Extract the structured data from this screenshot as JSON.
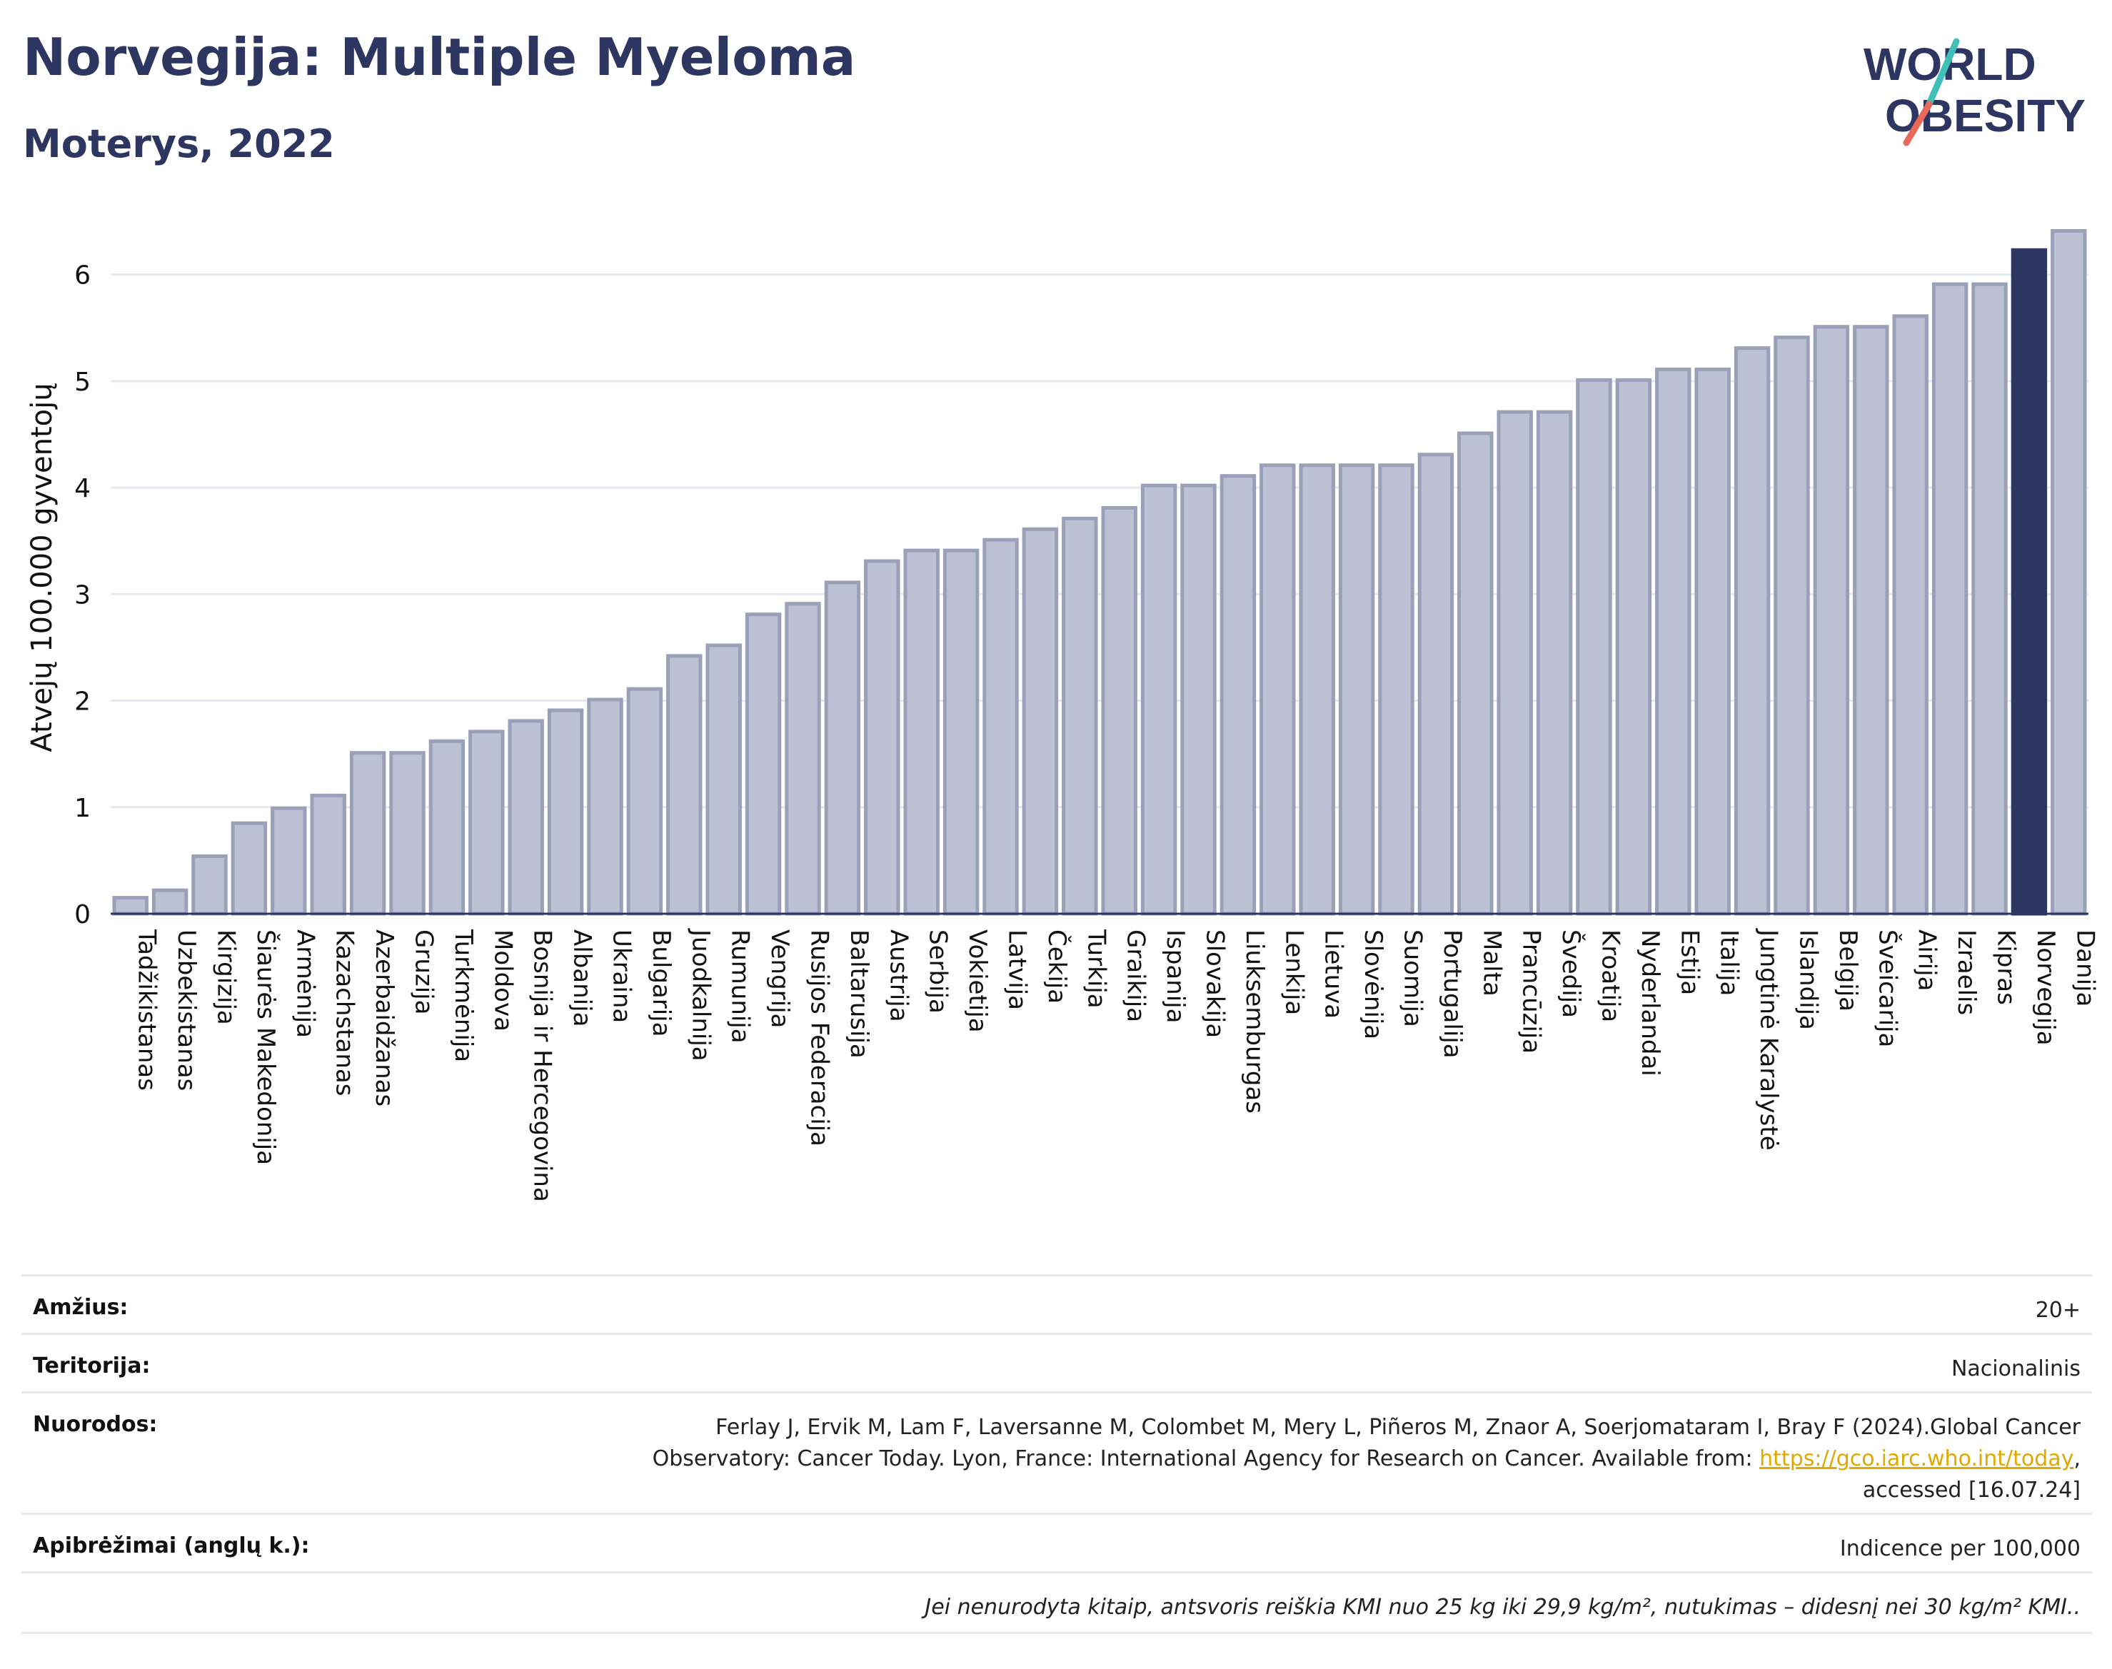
{
  "header": {
    "title": "Norvegija: Multiple Myeloma",
    "subtitle": "Moterys, 2022",
    "logo_line1": "WORLD",
    "logo_line2": "OBESITY"
  },
  "colors": {
    "bar": "#bcc1d3",
    "bar_stroke": "#9aa0b8",
    "highlight": "#2d3561",
    "grid": "#e6e9f2",
    "text": "#2d3561",
    "logo_teal": "#3fbfb7",
    "logo_red": "#e8685a"
  },
  "chart_data": {
    "type": "bar",
    "title": "Norvegija: Multiple Myeloma",
    "subtitle": "Moterys, 2022",
    "ylabel": "Atvejų 100.000 gyventojų",
    "xlabel": "",
    "ylim": [
      0,
      6.5
    ],
    "yticks": [
      0,
      1,
      2,
      3,
      4,
      5,
      6
    ],
    "grid": true,
    "highlight_category": "Norvegija",
    "categories": [
      "Tadžikistanas",
      "Uzbekistanas",
      "Kirgizija",
      "Šiaurės Makedonija",
      "Armėnija",
      "Kazachstanas",
      "Azerbaidžanas",
      "Gruzija",
      "Turkmėnija",
      "Moldova",
      "Bosnija ir Hercegovina",
      "Albanija",
      "Ukraina",
      "Bulgarija",
      "Juodkalnija",
      "Rumunija",
      "Vengrija",
      "Rusijos Federacija",
      "Baltarusija",
      "Austrija",
      "Serbija",
      "Vokietija",
      "Latvija",
      "Čekija",
      "Turkija",
      "Graikija",
      "Ispanija",
      "Slovakija",
      "Liuksemburgas",
      "Lenkija",
      "Lietuva",
      "Slovėnija",
      "Suomija",
      "Portugalija",
      "Malta",
      "Prancūzija",
      "Švedija",
      "Kroatija",
      "Nyderlandai",
      "Estija",
      "Italija",
      "Jungtinė Karalystė",
      "Islandija",
      "Belgija",
      "Šveicarija",
      "Airija",
      "Izraelis",
      "Kipras",
      "Norvegija",
      "Danija"
    ],
    "values": [
      0.15,
      0.22,
      0.54,
      0.85,
      0.99,
      1.11,
      1.51,
      1.51,
      1.62,
      1.71,
      1.81,
      1.91,
      2.01,
      2.11,
      2.42,
      2.52,
      2.81,
      2.91,
      3.11,
      3.31,
      3.41,
      3.41,
      3.51,
      3.61,
      3.71,
      3.81,
      4.02,
      4.02,
      4.11,
      4.21,
      4.21,
      4.21,
      4.21,
      4.31,
      4.51,
      4.71,
      4.71,
      5.01,
      5.01,
      5.11,
      5.11,
      5.31,
      5.41,
      5.51,
      5.51,
      5.61,
      5.91,
      5.91,
      6.23,
      6.41
    ]
  },
  "meta": {
    "age_label": "Amžius:",
    "age_value": "20+",
    "territory_label": "Teritorija:",
    "territory_value": "Nacionalinis",
    "refs_label": "Nuorodos:",
    "refs_line1": "Ferlay J, Ervik M, Lam F, Laversanne M, Colombet M, Mery L, Piñeros M, Znaor A, Soerjomataram I, Bray F (2024).Global Cancer",
    "refs_line2_pre": "Observatory: Cancer Today. Lyon, France: International Agency for Research on Cancer. Available from: ",
    "refs_link": "https://gco.iarc.who.int/today",
    "refs_line2_post": ",",
    "refs_line3": "accessed [16.07.24]",
    "defs_label": "Apibrėžimai (anglų k.):",
    "defs_value": "Indicence per 100,000",
    "footnote": "Jei nenurodyta kitaip, antsvoris reiškia KMI nuo 25 kg iki 29,9 kg/m², nutukimas – didesnį nei 30 kg/m² KMI.."
  }
}
